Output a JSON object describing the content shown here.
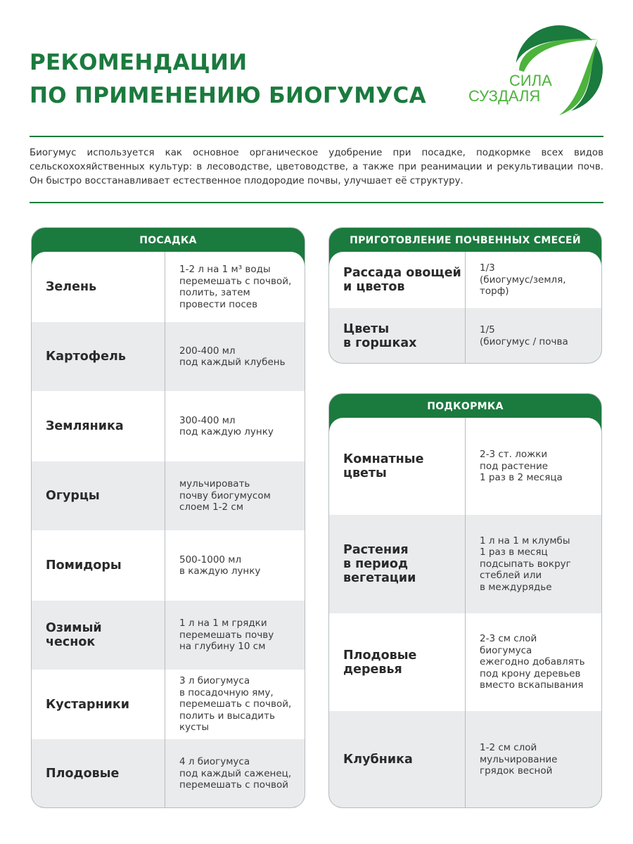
{
  "header": {
    "title_line1": "РЕКОМЕНДАЦИИ",
    "title_line2": "ПО ПРИМЕНЕНИЮ БИОГУМУСА",
    "logo_line1": "СИЛА",
    "logo_line2": "СУЗДАЛЯ"
  },
  "intro": "Биогумус используется как основное органическое удобрение при посадке, подкормке всех видов сельскохохяйственных культур: в лесоводстве, цветоводстве, а также при реанимации и рекультивации почв. Он быстро восстанавливает естественное плодородие почвы, улучшает её структуру.",
  "colors": {
    "brand_green": "#1b7a3e",
    "light_green": "#4cb33c",
    "row_gray": "#e9ebed"
  },
  "planting": {
    "title": "ПОСАДКА",
    "rows": [
      {
        "name": "Зелень",
        "value": "1-2 л на 1 м³ воды\nперемешать с почвой,\nполить, затем\nпровести посев"
      },
      {
        "name": "Картофель",
        "value": "200-400 мл\nпод каждый клубень"
      },
      {
        "name": "Земляника",
        "value": "300-400 мл\nпод каждую лунку"
      },
      {
        "name": "Огурцы",
        "value": "мульчировать\nпочву биогумусом\nслоем 1-2 см"
      },
      {
        "name": "Помидоры",
        "value": "500-1000 мл\nв каждую лунку"
      },
      {
        "name": "Озимый\nчеснок",
        "value": "1 л на 1 м грядки\nперемешать почву\nна глубину 10 см"
      },
      {
        "name": "Кустарники",
        "value": "3 л биогумуса\nв посадочную яму,\nперемешать с почвой,\nполить и высадить\nкусты"
      },
      {
        "name": "Плодовые",
        "value": "4 л биогумуса\nпод каждый саженец,\nперемешать с почвой"
      }
    ]
  },
  "mixes": {
    "title": "ПРИГОТОВЛЕНИЕ ПОЧВЕННЫХ СМЕСЕЙ",
    "rows": [
      {
        "name": "Рассада овощей\nи цветов",
        "value": "1/3\n(биогумус/земля,\nторф)"
      },
      {
        "name": "Цветы\nв горшках",
        "value": "1/5\n(биогумус / почва"
      }
    ]
  },
  "feeding": {
    "title": "ПОДКОРМКА",
    "rows": [
      {
        "name": "Комнатные\nцветы",
        "value": "2-3 ст. ложки\nпод растение\n1 раз в 2 месяца"
      },
      {
        "name": "Растения\nв период\nвегетации",
        "value": "1 л на 1 м клумбы\n1 раз в месяц\nподсыпать вокруг\nстеблей или\nв междурядье"
      },
      {
        "name": "Плодовые\nдеревья",
        "value": "2-3 см слой\nбиогумуса\nежегодно добавлять\nпод крону деревьев\nвместо вскапывания"
      },
      {
        "name": "Клубника",
        "value": "1-2 см слой\nмульчирование\nгрядок весной"
      }
    ]
  }
}
